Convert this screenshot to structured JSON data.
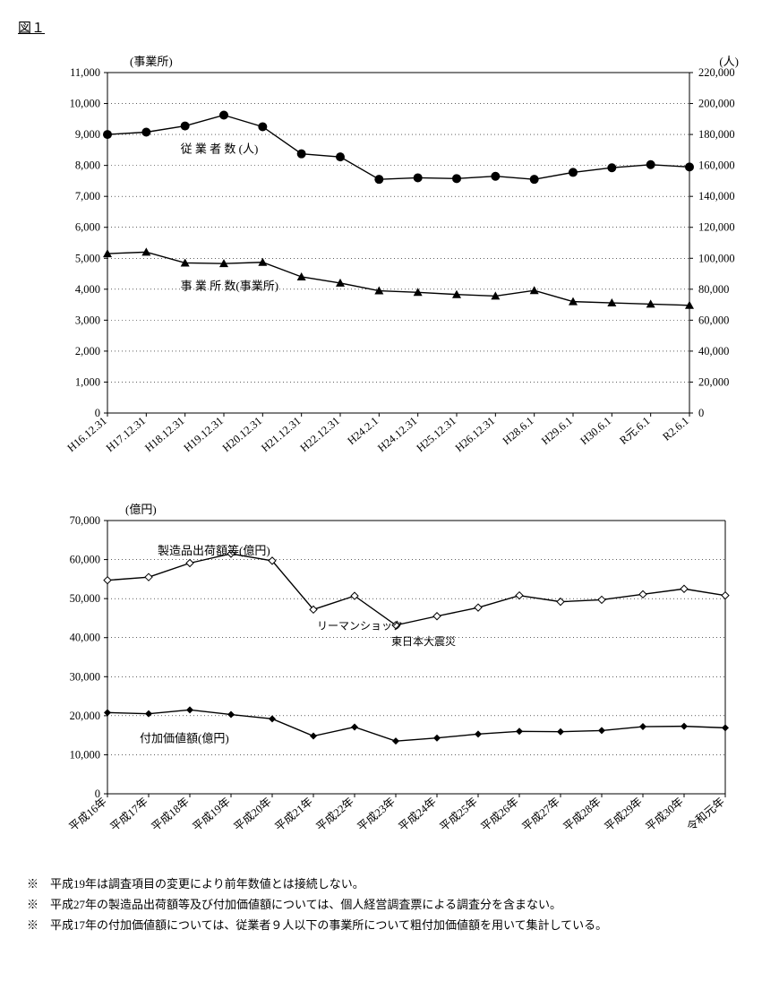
{
  "figure_title": "図１",
  "chart1": {
    "type": "line",
    "left_unit_label": "(事業所)",
    "right_unit_label": "(人)",
    "background_color": "#ffffff",
    "grid_color": "#000000",
    "grid_dash": "1 3",
    "axis_color": "#000000",
    "series_employees": {
      "label": "従 業 者 数 (人)",
      "color": "#000000",
      "marker": "circle",
      "marker_fill": "#000000",
      "marker_size": 5,
      "line_width": 1.4,
      "values": [
        180000,
        181500,
        185500,
        192500,
        185000,
        167500,
        165500,
        151000,
        152000,
        151500,
        153000,
        151000,
        155500,
        158500,
        160500,
        159000
      ]
    },
    "series_establishments": {
      "label": "事 業 所 数(事業所)",
      "color": "#000000",
      "marker": "triangle",
      "marker_fill": "#000000",
      "marker_size": 5,
      "line_width": 1.4,
      "values": [
        5150,
        5200,
        4850,
        4830,
        4870,
        4400,
        4200,
        3950,
        3900,
        3830,
        3780,
        3960,
        3600,
        3560,
        3520,
        3480
      ]
    },
    "x_categories": [
      "H16.12.31",
      "H17.12.31",
      "H18.12.31",
      "H19.12.31",
      "H20.12.31",
      "H21.12.31",
      "H22.12.31",
      "H24.2.1",
      "H24.12.31",
      "H25.12.31",
      "H26.12.31",
      "H28.6.1",
      "H29.6.1",
      "H30.6.1",
      "R元.6.1",
      "R2.6.1"
    ],
    "ylim_left": [
      0,
      11000
    ],
    "ytick_step_left": 1000,
    "ylim_right": [
      0,
      220000
    ],
    "ytick_step_right": 20000,
    "label_fontsize": 13,
    "tick_fontsize": 12
  },
  "chart2": {
    "type": "line",
    "unit_label": "(億円)",
    "background_color": "#ffffff",
    "grid_color": "#000000",
    "grid_dash": "1 3",
    "axis_color": "#000000",
    "series_shipments": {
      "label": "製造品出荷額等(億円)",
      "color": "#000000",
      "marker": "diamond",
      "marker_fill": "#ffffff",
      "marker_stroke": "#000000",
      "marker_size": 4,
      "line_width": 1.4,
      "values": [
        54700,
        55500,
        59100,
        61500,
        59700,
        47200,
        50700,
        43200,
        45500,
        47700,
        50800,
        49200,
        49700,
        51100,
        52500,
        50800
      ]
    },
    "series_value_added": {
      "label": "付加価値額(億円)",
      "color": "#000000",
      "marker": "diamond",
      "marker_fill": "#000000",
      "marker_size": 4,
      "line_width": 1.4,
      "values": [
        20800,
        20500,
        21500,
        20300,
        19200,
        14800,
        17100,
        13500,
        14300,
        15300,
        16000,
        15900,
        16200,
        17200,
        17300,
        16900
      ]
    },
    "annotations": {
      "lehman": "リーマンショック",
      "earthquake": "東日本大震災"
    },
    "x_categories": [
      "平成16年",
      "平成17年",
      "平成18年",
      "平成19年",
      "平成20年",
      "平成21年",
      "平成22年",
      "平成23年",
      "平成24年",
      "平成25年",
      "平成26年",
      "平成27年",
      "平成28年",
      "平成29年",
      "平成30年",
      "令和元年"
    ],
    "ylim": [
      0,
      70000
    ],
    "ytick_step": 10000,
    "label_fontsize": 13,
    "tick_fontsize": 12
  },
  "footnotes": [
    "※　平成19年は調査項目の変更により前年数値とは接続しない。",
    "※　平成27年の製造品出荷額等及び付加価値額については、個人経営調査票による調査分を含まない。",
    "※　平成17年の付加価値額については、従業者９人以下の事業所について粗付加価値額を用いて集計している。"
  ]
}
